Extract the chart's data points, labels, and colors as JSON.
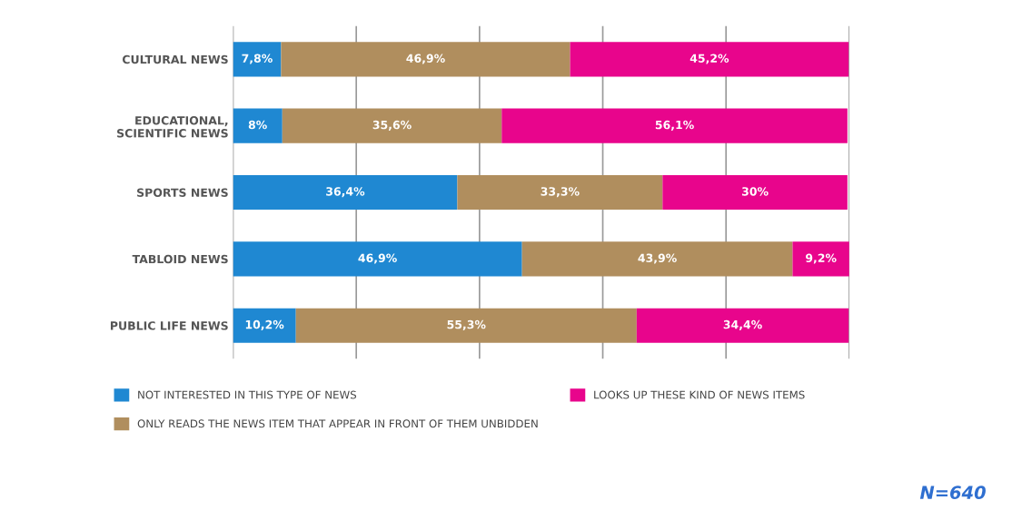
{
  "chart_data": {
    "type": "bar",
    "orientation": "horizontal",
    "stacked": true,
    "categories": [
      "CULTURAL NEWS",
      "EDUCATIONAL,\nSCIENTIFIC NEWS",
      "SPORTS NEWS",
      "TABLOID NEWS",
      "PUBLIC LIFE NEWS"
    ],
    "series": [
      {
        "name": "NOT INTERESTED IN THIS TYPE OF NEWS",
        "color": "#1f88d2",
        "values": [
          7.8,
          8,
          36.4,
          46.9,
          10.2
        ],
        "value_labels": [
          "7,8%",
          "8%",
          "36,4%",
          "46,9%",
          "10,2%"
        ]
      },
      {
        "name": "ONLY READS THE NEWS ITEM THAT APPEAR IN FRONT OF THEM UNBIDDEN",
        "color": "#b08e5e",
        "values": [
          46.9,
          35.6,
          33.3,
          43.9,
          55.3
        ],
        "value_labels": [
          "46,9%",
          "35,6%",
          "33,3%",
          "43,9%",
          "55,3%"
        ]
      },
      {
        "name": "LOOKS UP THESE KIND OF NEWS ITEMS",
        "color": "#e8058c",
        "values": [
          45.2,
          56.1,
          30,
          9.2,
          34.4
        ],
        "value_labels": [
          "45,2%",
          "56,1%",
          "30%",
          "9,2%",
          "34,4%"
        ]
      }
    ],
    "xlim": [
      0,
      100
    ],
    "xticks": [
      {
        "value": 0,
        "label": null
      },
      {
        "value": 20,
        "label": null
      },
      {
        "value": 40,
        "label": null
      },
      {
        "value": 60,
        "label": null
      },
      {
        "value": 80,
        "label": null
      },
      {
        "value": 100,
        "label": null
      }
    ],
    "grid": "x",
    "tick_labels": "y",
    "legend": "bottom",
    "annotations": [
      "N=640"
    ]
  }
}
